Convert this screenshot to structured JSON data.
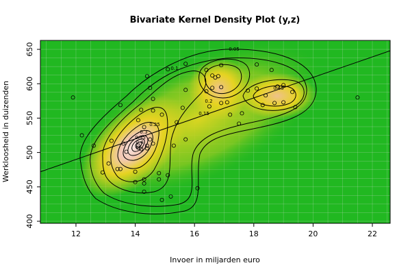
{
  "chart_data": {
    "type": "heatmap",
    "subtype": "bivariate-kernel-density-with-scatter",
    "title": "Bivariate Kernel Density Plot (y,z)",
    "xlabel": "Invoer in miljarden euro",
    "ylabel": "Werkloosheid in duizenden",
    "xlim": [
      10.8,
      22.6
    ],
    "ylim": [
      397,
      663
    ],
    "x_ticks": [
      12,
      14,
      16,
      18,
      20,
      22
    ],
    "y_ticks": [
      400,
      450,
      500,
      550,
      600,
      650
    ],
    "x_tick_labels": [
      "12",
      "14",
      "16",
      "18",
      "20",
      "22"
    ],
    "y_tick_labels": [
      "400",
      "450",
      "500",
      "550",
      "600",
      "650"
    ],
    "grid": true,
    "colors": {
      "low": "#21b821",
      "mid": "#e6d321",
      "high": "#f2c7b4",
      "peak": "#f7e6e1",
      "contour": "#000000",
      "grid": "#dcdcdc",
      "points": "#000000"
    },
    "contour_levels": [
      "0.05",
      "0.1",
      "0.15",
      "0.2",
      "0.25",
      "0.3",
      "0.35",
      "0.4",
      "0.45"
    ],
    "regression_line": {
      "x": [
        10.8,
        22.6
      ],
      "y": [
        472,
        648
      ]
    },
    "points": [
      {
        "x": 11.9,
        "y": 580
      },
      {
        "x": 12.2,
        "y": 525
      },
      {
        "x": 12.6,
        "y": 510
      },
      {
        "x": 12.9,
        "y": 471
      },
      {
        "x": 13.1,
        "y": 484
      },
      {
        "x": 13.2,
        "y": 517
      },
      {
        "x": 13.4,
        "y": 476
      },
      {
        "x": 13.5,
        "y": 476
      },
      {
        "x": 13.5,
        "y": 569
      },
      {
        "x": 13.6,
        "y": 513
      },
      {
        "x": 13.7,
        "y": 501
      },
      {
        "x": 14.0,
        "y": 457
      },
      {
        "x": 14.0,
        "y": 472
      },
      {
        "x": 14.1,
        "y": 547
      },
      {
        "x": 14.1,
        "y": 510
      },
      {
        "x": 14.1,
        "y": 507
      },
      {
        "x": 14.2,
        "y": 562
      },
      {
        "x": 14.2,
        "y": 505
      },
      {
        "x": 14.3,
        "y": 537
      },
      {
        "x": 14.3,
        "y": 461
      },
      {
        "x": 14.3,
        "y": 455
      },
      {
        "x": 14.3,
        "y": 443
      },
      {
        "x": 14.4,
        "y": 611
      },
      {
        "x": 14.4,
        "y": 510
      },
      {
        "x": 14.4,
        "y": 506
      },
      {
        "x": 14.5,
        "y": 594
      },
      {
        "x": 14.5,
        "y": 519
      },
      {
        "x": 14.6,
        "y": 578
      },
      {
        "x": 14.6,
        "y": 561
      },
      {
        "x": 14.6,
        "y": 513
      },
      {
        "x": 14.8,
        "y": 470
      },
      {
        "x": 14.8,
        "y": 461
      },
      {
        "x": 14.9,
        "y": 431
      },
      {
        "x": 14.9,
        "y": 555
      },
      {
        "x": 15.1,
        "y": 621
      },
      {
        "x": 15.1,
        "y": 467
      },
      {
        "x": 15.2,
        "y": 436
      },
      {
        "x": 15.3,
        "y": 510
      },
      {
        "x": 15.4,
        "y": 544
      },
      {
        "x": 15.6,
        "y": 565
      },
      {
        "x": 15.7,
        "y": 629
      },
      {
        "x": 15.7,
        "y": 591
      },
      {
        "x": 15.7,
        "y": 519
      },
      {
        "x": 16.1,
        "y": 448
      },
      {
        "x": 16.4,
        "y": 620
      },
      {
        "x": 16.4,
        "y": 589
      },
      {
        "x": 16.5,
        "y": 567
      },
      {
        "x": 16.6,
        "y": 612
      },
      {
        "x": 16.6,
        "y": 594
      },
      {
        "x": 16.7,
        "y": 609
      },
      {
        "x": 16.8,
        "y": 611
      },
      {
        "x": 16.9,
        "y": 627
      },
      {
        "x": 16.9,
        "y": 595
      },
      {
        "x": 16.9,
        "y": 572
      },
      {
        "x": 17.1,
        "y": 573
      },
      {
        "x": 17.2,
        "y": 555
      },
      {
        "x": 17.5,
        "y": 542
      },
      {
        "x": 17.6,
        "y": 557
      },
      {
        "x": 17.8,
        "y": 590
      },
      {
        "x": 18.1,
        "y": 628
      },
      {
        "x": 18.1,
        "y": 593
      },
      {
        "x": 18.3,
        "y": 569
      },
      {
        "x": 18.4,
        "y": 583
      },
      {
        "x": 18.6,
        "y": 620
      },
      {
        "x": 18.7,
        "y": 572
      },
      {
        "x": 18.8,
        "y": 596
      },
      {
        "x": 19.0,
        "y": 598
      },
      {
        "x": 19.0,
        "y": 573
      },
      {
        "x": 19.3,
        "y": 588
      },
      {
        "x": 19.4,
        "y": 566
      },
      {
        "x": 21.5,
        "y": 580
      }
    ]
  }
}
